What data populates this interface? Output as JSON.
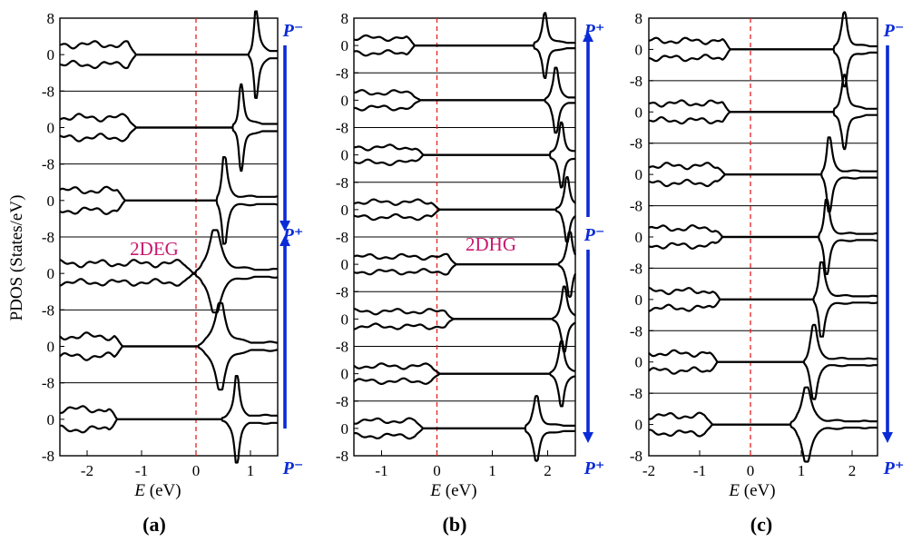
{
  "figure": {
    "ylabel": "PDOS (States/eV)",
    "xlabel_symbol": "E",
    "xlabel_unit": " (eV)",
    "colors": {
      "curve": "#000000",
      "fermi_line": "#e8201c",
      "polarization": "#0a2bd6",
      "annotation": "#c8186e"
    }
  },
  "chart_data": [
    {
      "type": "line",
      "caption": "(a)",
      "xlim": [
        -2.5,
        1.5
      ],
      "xticks": [
        -2,
        -1,
        0,
        1
      ],
      "ylim": [
        -8,
        8
      ],
      "num_layers": 6,
      "fermi_level": 0,
      "polarization_labels": [
        "P⁻",
        "P⁺",
        "P⁻"
      ],
      "arrows": [
        {
          "from": "top",
          "to": "middle"
        },
        {
          "from": "bottom",
          "to": "middle"
        }
      ],
      "annotation": {
        "text": "2DEG",
        "layer": 4
      },
      "layers": [
        {
          "vbm": -1.1,
          "cbm": 0.97,
          "peak": 1.1,
          "peak_width": 0.05
        },
        {
          "vbm": -1.1,
          "cbm": 0.68,
          "peak": 0.83,
          "peak_width": 0.05
        },
        {
          "vbm": -1.3,
          "cbm": 0.38,
          "peak": 0.52,
          "peak_width": 0.06
        },
        {
          "vbm": -0.05,
          "cbm": 0.0,
          "peak": 0.35,
          "peak_width": 0.12,
          "in_gap_states": true
        },
        {
          "vbm": -1.35,
          "cbm": 0.05,
          "peak": 0.45,
          "peak_width": 0.1
        },
        {
          "vbm": -1.45,
          "cbm": 0.48,
          "peak": 0.75,
          "peak_width": 0.05
        }
      ]
    },
    {
      "type": "line",
      "caption": "(b)",
      "xlim": [
        -1.5,
        2.5
      ],
      "xticks": [
        -1,
        0,
        1,
        2
      ],
      "ylim": [
        -8,
        8
      ],
      "num_layers": 8,
      "fermi_level": 0,
      "polarization_labels": [
        "P⁺",
        "P⁻",
        "P⁺"
      ],
      "arrows": [
        {
          "from": "middle",
          "to": "top"
        },
        {
          "from": "middle",
          "to": "bottom"
        }
      ],
      "annotation": {
        "text": "2DHG",
        "layer": 5
      },
      "layers": [
        {
          "vbm": -0.4,
          "cbm": 1.75,
          "peak": 1.95,
          "peak_width": 0.05
        },
        {
          "vbm": -0.3,
          "cbm": 1.95,
          "peak": 2.15,
          "peak_width": 0.05
        },
        {
          "vbm": -0.25,
          "cbm": 2.05,
          "peak": 2.25,
          "peak_width": 0.05
        },
        {
          "vbm": 0.05,
          "cbm": 2.15,
          "peak": 2.35,
          "peak_width": 0.05
        },
        {
          "vbm": 0.35,
          "cbm": 2.2,
          "peak": 2.4,
          "peak_width": 0.05
        },
        {
          "vbm": 0.3,
          "cbm": 2.1,
          "peak": 2.3,
          "peak_width": 0.05
        },
        {
          "vbm": 0.05,
          "cbm": 2.05,
          "peak": 2.25,
          "peak_width": 0.05
        },
        {
          "vbm": -0.25,
          "cbm": 1.6,
          "peak": 1.8,
          "peak_width": 0.06
        }
      ]
    },
    {
      "type": "line",
      "caption": "(c)",
      "xlim": [
        -2,
        2.5
      ],
      "xticks": [
        -2,
        -1,
        0,
        1,
        2
      ],
      "ylim": [
        -8,
        8
      ],
      "num_layers": 7,
      "fermi_level": 0,
      "polarization_labels": [
        "P⁻",
        "P⁺"
      ],
      "arrows": [
        {
          "from": "top",
          "to": "bottom"
        }
      ],
      "layers": [
        {
          "vbm": -0.4,
          "cbm": 1.65,
          "peak": 1.85,
          "peak_width": 0.06
        },
        {
          "vbm": -0.4,
          "cbm": 1.65,
          "peak": 1.85,
          "peak_width": 0.06
        },
        {
          "vbm": -0.5,
          "cbm": 1.4,
          "peak": 1.55,
          "peak_width": 0.06
        },
        {
          "vbm": -0.55,
          "cbm": 1.35,
          "peak": 1.5,
          "peak_width": 0.06
        },
        {
          "vbm": -0.6,
          "cbm": 1.25,
          "peak": 1.4,
          "peak_width": 0.07
        },
        {
          "vbm": -0.65,
          "cbm": 1.05,
          "peak": 1.25,
          "peak_width": 0.07
        },
        {
          "vbm": -0.75,
          "cbm": 0.8,
          "peak": 1.1,
          "peak_width": 0.1
        }
      ]
    }
  ]
}
